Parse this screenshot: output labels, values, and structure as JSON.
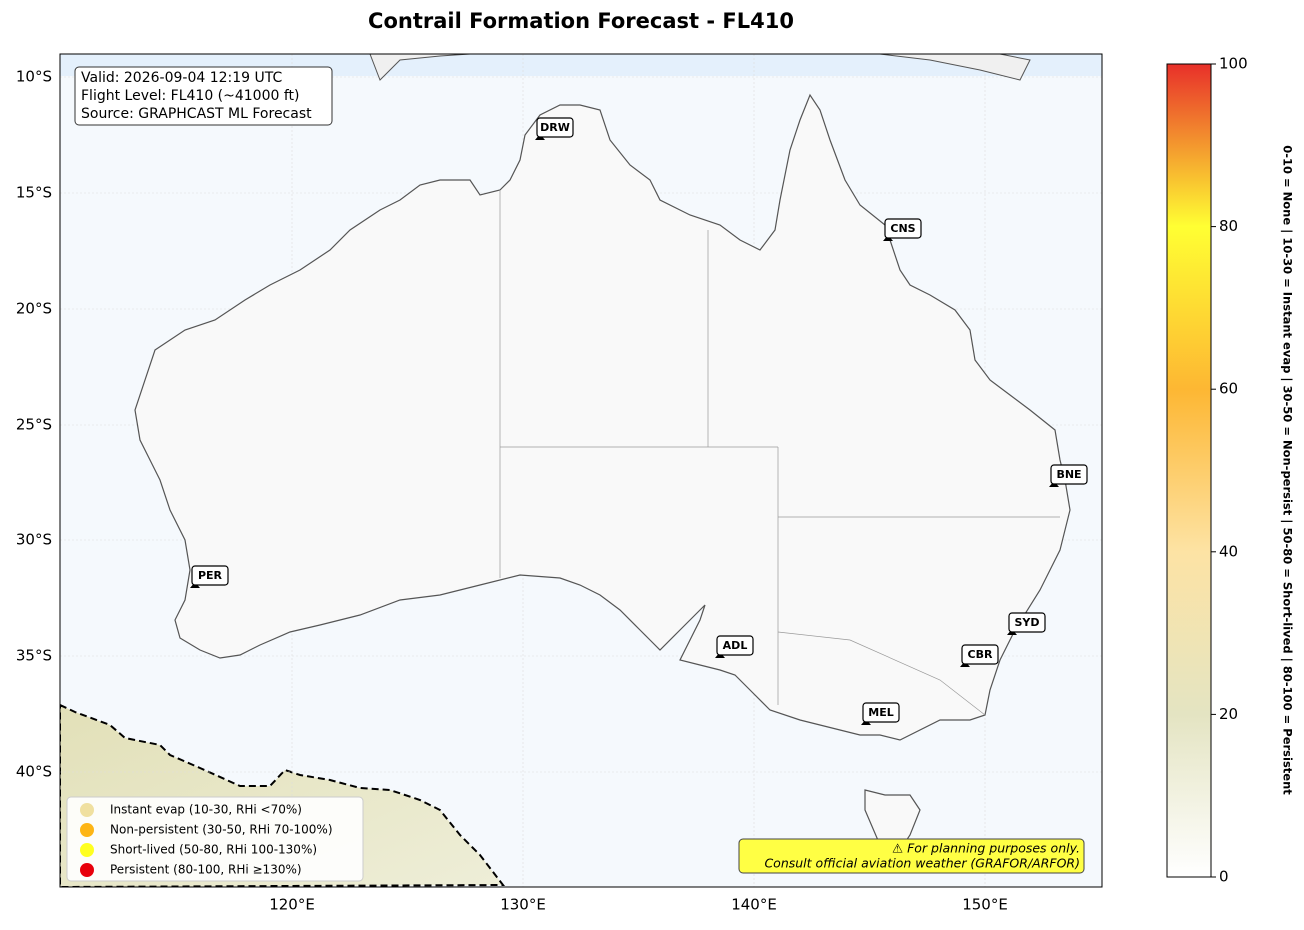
{
  "title": "Contrail Formation Forecast - FL410",
  "map": {
    "lat_labels": [
      "10°S",
      "15°S",
      "20°S",
      "25°S",
      "30°S",
      "35°S",
      "40°S"
    ],
    "lon_labels": [
      "120°E",
      "130°E",
      "140°E",
      "150°E"
    ]
  },
  "info_box": [
    "Valid: 2026-09-04 12:19 UTC",
    "Flight Level: FL410 (~41000 ft)",
    "Source: GRAPHCAST ML Forecast"
  ],
  "cities": [
    "DRW",
    "CNS",
    "BNE",
    "PER",
    "ADL",
    "SYD",
    "CBR",
    "MEL"
  ],
  "legend": [
    {
      "label": "Instant evap (10-30, RHi <70%)",
      "color": "#f0e0a0"
    },
    {
      "label": "Non-persistent (30-50, RHi 70-100%)",
      "color": "#fdb515"
    },
    {
      "label": "Short-lived (50-80, RHi 100-130%)",
      "color": "#ffff20"
    },
    {
      "label": "Persistent (80-100, RHi ≥130%)",
      "color": "#e8000b"
    }
  ],
  "disclaimer": [
    "⚠ For planning purposes only.",
    "Consult official aviation weather (GRAFOR/ARFOR)"
  ],
  "colorbar": {
    "range": [
      0,
      100
    ],
    "ticks": [
      0,
      20,
      40,
      60,
      80,
      100
    ],
    "colors": [
      "#ffffff",
      "#e4e4c2",
      "#fde3a4",
      "#fdb733",
      "#ffff33",
      "#e8302a"
    ],
    "label": "0-10 = None  |  10-30 = Instant evap  |  30-50 = Non-persist  |  50-80 = Short-lived  |  80-100 = Persistent"
  }
}
